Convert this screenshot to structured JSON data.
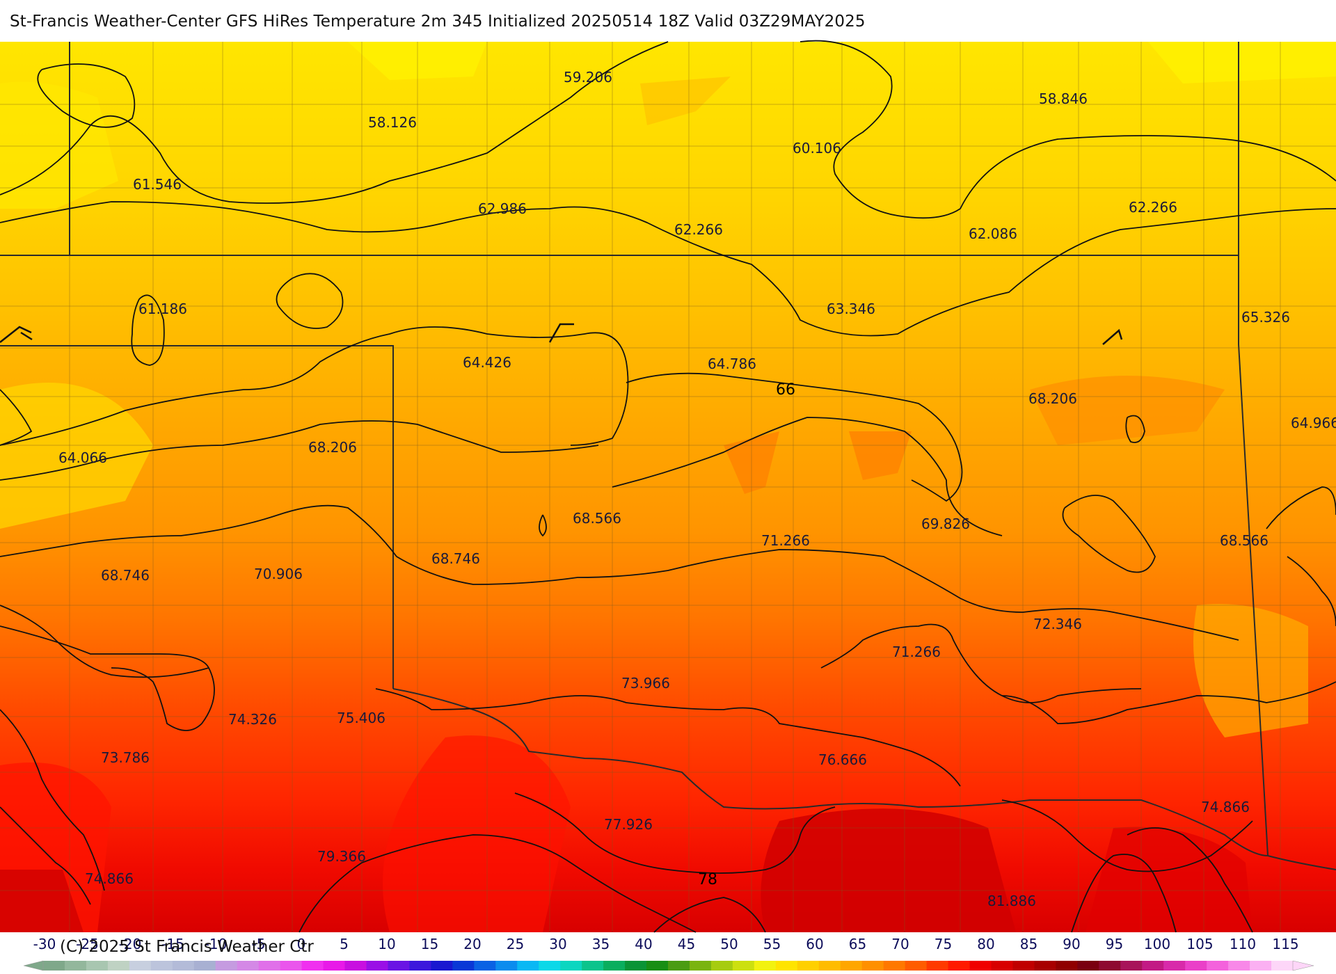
{
  "header": {
    "title": "St-Francis Weather-Center GFS HiRes Temperature 2m  345 Initialized 20250514 18Z Valid 03Z29MAY2025"
  },
  "map": {
    "point_values": [
      "59.206",
      "58.126",
      "58.846",
      "60.106",
      "61.546",
      "62.986",
      "62.266",
      "62.086",
      "62.266",
      "61.186",
      "63.346",
      "65.326",
      "64.426",
      "64.786",
      "68.206",
      "64.966",
      "64.066",
      "68.206",
      "68.566",
      "71.266",
      "69.826",
      "68.566",
      "68.746",
      "70.906",
      "68.746",
      "72.346",
      "71.266",
      "73.966",
      "74.326",
      "75.406",
      "73.786",
      "76.666",
      "74.866",
      "77.926",
      "79.366",
      "74.866",
      "81.886"
    ],
    "contour_labels": [
      "66",
      "78"
    ]
  },
  "colorbar": {
    "ticks": [
      "-30",
      "-25",
      "-20",
      "-15",
      "-10",
      "-5",
      "0",
      "5",
      "10",
      "15",
      "20",
      "25",
      "30",
      "35",
      "40",
      "45",
      "50",
      "55",
      "60",
      "65",
      "70",
      "75",
      "80",
      "85",
      "90",
      "95",
      "100",
      "105",
      "110",
      "115"
    ],
    "colors": [
      "#7fa88a",
      "#93b79c",
      "#a8c6b0",
      "#bfd2c3",
      "#c7cfdf",
      "#bcc4dc",
      "#b3bbd8",
      "#a8b0d2",
      "#c59be0",
      "#d488e6",
      "#e070e9",
      "#ea55ec",
      "#f030ef",
      "#e81ae8",
      "#c810e0",
      "#9a10e6",
      "#6a14e4",
      "#3c18dc",
      "#1a18d0",
      "#0a38d6",
      "#0a62e4",
      "#0b8cee",
      "#0ab8f4",
      "#0cd8e8",
      "#0cd6c0",
      "#0cc48c",
      "#0aae5e",
      "#0a9436",
      "#188e14",
      "#4a9c12",
      "#7ab410",
      "#a6cc10",
      "#cce010",
      "#f2f210",
      "#ffe400",
      "#ffd000",
      "#ffbc00",
      "#ffa600",
      "#ff9000",
      "#ff7800",
      "#ff5c00",
      "#ff3a00",
      "#ff1a00",
      "#f00000",
      "#d80000",
      "#c00000",
      "#a80000",
      "#900000",
      "#7a0010",
      "#8e0a30",
      "#a8145a",
      "#c21a84",
      "#d82aaa",
      "#ea40c8",
      "#f462dc",
      "#f888e8",
      "#fbb0f2",
      "#fdd6f8"
    ],
    "tick_color": "#0c0c5a"
  },
  "footer": {
    "copyright": "(C) 2025 St Francis Weather Ctr"
  }
}
